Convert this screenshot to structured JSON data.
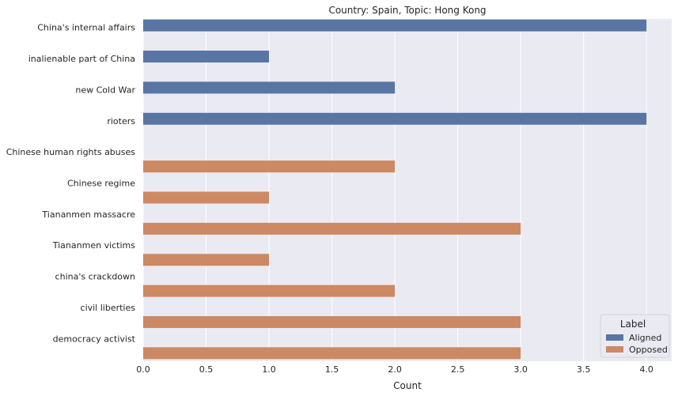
{
  "chart_data": {
    "type": "bar",
    "orientation": "horizontal",
    "title": "Country: Spain, Topic: Hong Kong",
    "xlabel": "Count",
    "ylabel": "",
    "xlim": [
      0,
      4.2
    ],
    "xticks": [
      "0.0",
      "0.5",
      "1.0",
      "1.5",
      "2.0",
      "2.5",
      "3.0",
      "3.5",
      "4.0"
    ],
    "categories": [
      "China's internal affairs",
      "inalienable part of China",
      "new Cold War",
      "rioters",
      "Chinese human rights abuses",
      "Chinese regime",
      "Tiananmen massacre",
      "Tiananmen victims",
      "china's crackdown",
      "civil liberties",
      "democracy activist"
    ],
    "series": [
      {
        "name": "Aligned",
        "color": "#5875a4",
        "values": [
          4,
          1,
          2,
          4,
          0,
          0,
          0,
          0,
          0,
          0,
          0
        ]
      },
      {
        "name": "Opposed",
        "color": "#cc8963",
        "values": [
          0,
          0,
          0,
          0,
          2,
          1,
          3,
          1,
          2,
          3,
          3
        ]
      }
    ],
    "legend": {
      "title": "Label",
      "placement": "bottom-right"
    },
    "grid": true,
    "background": "#eaeaf2"
  }
}
